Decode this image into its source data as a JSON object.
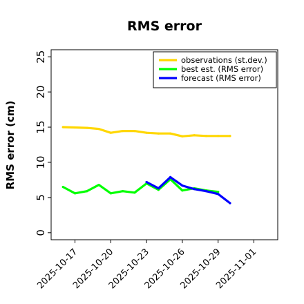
{
  "chart_data": {
    "type": "line",
    "title": "RMS error",
    "ylabel": "RMS error (cm)",
    "xlabel": "",
    "ylim": [
      -1,
      26
    ],
    "yticks": [
      0,
      5,
      10,
      15,
      20,
      25
    ],
    "xlim": [
      "2025-10-15",
      "2025-11-03"
    ],
    "xticks": [
      "2025-10-17",
      "2025-10-20",
      "2025-10-23",
      "2025-10-26",
      "2025-10-29",
      "2025-11-01"
    ],
    "highlighted_xtick": {
      "label": "2025-10-23",
      "color": "#228b22"
    },
    "grid": false,
    "legend_position": "top-right",
    "series": [
      {
        "name": "observations (st.dev.)",
        "color": "#ffd700",
        "x": [
          "2025-10-16",
          "2025-10-17",
          "2025-10-18",
          "2025-10-19",
          "2025-10-20",
          "2025-10-21",
          "2025-10-22",
          "2025-10-23",
          "2025-10-24",
          "2025-10-25",
          "2025-10-26",
          "2025-10-27",
          "2025-10-28",
          "2025-10-29",
          "2025-10-30"
        ],
        "values": [
          15.0,
          14.95,
          14.9,
          14.75,
          14.2,
          14.45,
          14.45,
          14.2,
          14.1,
          14.1,
          13.7,
          13.85,
          13.75,
          13.75,
          13.75
        ]
      },
      {
        "name": "best est. (RMS error)",
        "color": "#00ff00",
        "x": [
          "2025-10-16",
          "2025-10-17",
          "2025-10-18",
          "2025-10-19",
          "2025-10-20",
          "2025-10-21",
          "2025-10-22",
          "2025-10-23",
          "2025-10-24",
          "2025-10-25",
          "2025-10-26",
          "2025-10-27",
          "2025-10-28",
          "2025-10-29"
        ],
        "values": [
          6.5,
          5.6,
          5.9,
          6.8,
          5.6,
          5.9,
          5.7,
          7.0,
          6.1,
          7.6,
          6.0,
          6.3,
          6.0,
          5.8
        ]
      },
      {
        "name": "forecast (RMS error)",
        "color": "#0000ff",
        "x": [
          "2025-10-23",
          "2025-10-24",
          "2025-10-25",
          "2025-10-26",
          "2025-10-27",
          "2025-10-28",
          "2025-10-29",
          "2025-10-30"
        ],
        "values": [
          7.2,
          6.3,
          7.9,
          6.7,
          6.2,
          5.9,
          5.5,
          4.2
        ]
      }
    ]
  }
}
